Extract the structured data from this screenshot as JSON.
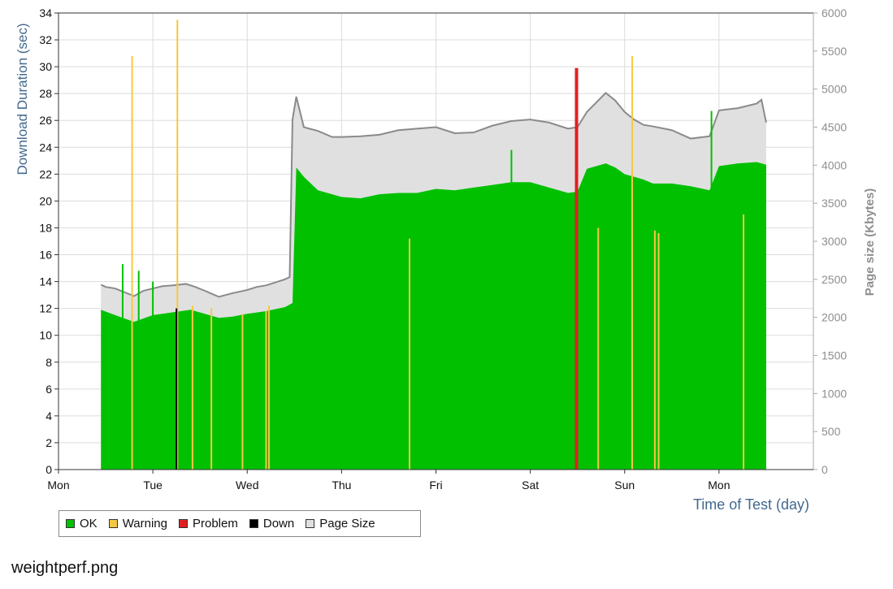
{
  "caption": "weightperf.png",
  "legend": {
    "items": [
      {
        "label": "OK",
        "color": "#00c000"
      },
      {
        "label": "Warning",
        "color": "#f5c842"
      },
      {
        "label": "Problem",
        "color": "#e02020"
      },
      {
        "label": "Down",
        "color": "#000000"
      },
      {
        "label": "Page Size",
        "color": "#e0e0e0"
      }
    ]
  },
  "chart_data": {
    "type": "area",
    "xlabel": "Time of Test (day)",
    "ylabel": "Download Duration (sec)",
    "y2label": "Page size (Kbytes)",
    "x_ticks": [
      "Mon",
      "Tue",
      "Wed",
      "Thu",
      "Fri",
      "Sat",
      "Sun",
      "Mon"
    ],
    "ylim": [
      0,
      34
    ],
    "y_ticks": [
      0,
      2,
      4,
      6,
      8,
      10,
      12,
      14,
      16,
      18,
      20,
      22,
      24,
      26,
      28,
      30,
      32,
      34
    ],
    "y2lim": [
      0,
      6000
    ],
    "y2_ticks": [
      0,
      500,
      1000,
      1500,
      2000,
      2500,
      3000,
      3500,
      4000,
      4500,
      5000,
      5500,
      6000
    ],
    "x_range_days": [
      0,
      8
    ],
    "grid": true,
    "colors": {
      "ok": "#00c000",
      "warning": "#f5c842",
      "problem": "#e02020",
      "down": "#000000",
      "page_size_fill": "#e0e0e0",
      "page_size_line": "#8a8a8a"
    },
    "series": [
      {
        "name": "Page Size",
        "axis": "right",
        "x_days": [
          0.45,
          0.5,
          0.6,
          0.8,
          0.9,
          1.0,
          1.1,
          1.2,
          1.35,
          1.45,
          1.55,
          1.7,
          1.85,
          2.0,
          2.1,
          2.2,
          2.3,
          2.4,
          2.45,
          2.48,
          2.52,
          2.6,
          2.75,
          2.9,
          3.0,
          3.2,
          3.4,
          3.6,
          3.8,
          4.0,
          4.2,
          4.4,
          4.6,
          4.8,
          5.0,
          5.2,
          5.4,
          5.5,
          5.6,
          5.8,
          5.9,
          6.0,
          6.1,
          6.2,
          6.3,
          6.5,
          6.7,
          6.9,
          7.0,
          7.2,
          7.4,
          7.45,
          7.5
        ],
        "values": [
          2430,
          2400,
          2380,
          2280,
          2350,
          2380,
          2410,
          2420,
          2440,
          2400,
          2350,
          2270,
          2320,
          2360,
          2400,
          2420,
          2460,
          2500,
          2530,
          4600,
          4900,
          4500,
          4450,
          4370,
          4370,
          4380,
          4400,
          4460,
          4480,
          4500,
          4420,
          4430,
          4520,
          4580,
          4600,
          4560,
          4480,
          4500,
          4700,
          4950,
          4850,
          4700,
          4600,
          4530,
          4510,
          4460,
          4350,
          4380,
          4720,
          4750,
          4810,
          4860,
          4560
        ]
      },
      {
        "name": "OK",
        "axis": "left",
        "x_days": [
          0.45,
          0.6,
          0.8,
          1.0,
          1.2,
          1.4,
          1.55,
          1.7,
          1.85,
          2.0,
          2.2,
          2.4,
          2.48,
          2.52,
          2.6,
          2.75,
          2.9,
          3.0,
          3.2,
          3.4,
          3.6,
          3.8,
          4.0,
          4.2,
          4.4,
          4.6,
          4.8,
          5.0,
          5.2,
          5.4,
          5.5,
          5.6,
          5.8,
          5.9,
          6.0,
          6.1,
          6.2,
          6.3,
          6.5,
          6.7,
          6.9,
          7.0,
          7.2,
          7.4,
          7.5
        ],
        "values": [
          11.9,
          11.5,
          11.0,
          11.5,
          11.7,
          11.9,
          11.6,
          11.3,
          11.4,
          11.6,
          11.8,
          12.1,
          12.4,
          22.5,
          21.8,
          20.8,
          20.5,
          20.3,
          20.2,
          20.5,
          20.6,
          20.6,
          20.9,
          20.8,
          21.0,
          21.2,
          21.4,
          21.4,
          21.0,
          20.6,
          20.7,
          22.4,
          22.8,
          22.5,
          22.0,
          21.8,
          21.6,
          21.3,
          21.3,
          21.1,
          20.8,
          22.6,
          22.8,
          22.9,
          22.7
        ]
      }
    ],
    "events": [
      {
        "status": "Warning",
        "x_day": 0.78,
        "y": 30.8
      },
      {
        "status": "Warning",
        "x_day": 1.26,
        "y": 33.5
      },
      {
        "status": "Down",
        "x_day": 1.25,
        "y": 12.0
      },
      {
        "status": "Warning",
        "x_day": 1.42,
        "y": 12.2
      },
      {
        "status": "Warning",
        "x_day": 1.62,
        "y": 12.0
      },
      {
        "status": "Warning",
        "x_day": 1.95,
        "y": 11.6
      },
      {
        "status": "Warning",
        "x_day": 2.2,
        "y": 11.8
      },
      {
        "status": "Warning",
        "x_day": 2.23,
        "y": 12.2
      },
      {
        "status": "Warning",
        "x_day": 3.72,
        "y": 17.2
      },
      {
        "status": "Problem",
        "x_day": 5.49,
        "y": 29.9
      },
      {
        "status": "Warning",
        "x_day": 5.72,
        "y": 18.0
      },
      {
        "status": "Warning",
        "x_day": 6.08,
        "y": 30.8
      },
      {
        "status": "Warning",
        "x_day": 6.32,
        "y": 17.8
      },
      {
        "status": "Warning",
        "x_day": 6.36,
        "y": 17.6
      },
      {
        "status": "Warning",
        "x_day": 7.26,
        "y": 19.0
      },
      {
        "status": "OK",
        "x_day": 0.68,
        "y": 15.3
      },
      {
        "status": "OK",
        "x_day": 0.85,
        "y": 14.8
      },
      {
        "status": "OK",
        "x_day": 1.0,
        "y": 14.0
      },
      {
        "status": "OK",
        "x_day": 4.8,
        "y": 23.8
      },
      {
        "status": "OK",
        "x_day": 6.92,
        "y": 26.7
      }
    ]
  }
}
